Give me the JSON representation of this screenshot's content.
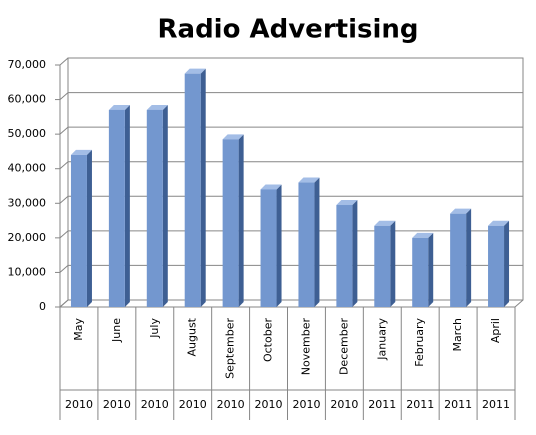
{
  "chart_data": {
    "type": "bar3d",
    "title": "Radio Advertising",
    "categories": [
      "May",
      "June",
      "July",
      "August",
      "September",
      "October",
      "November",
      "December",
      "January",
      "February",
      "March",
      "April"
    ],
    "years": [
      "2010",
      "2010",
      "2010",
      "2010",
      "2010",
      "2010",
      "2010",
      "2010",
      "2011",
      "2011",
      "2011",
      "2011"
    ],
    "values": [
      44000,
      57000,
      57000,
      67500,
      48500,
      34000,
      36000,
      29500,
      23500,
      20000,
      27000,
      23500
    ],
    "color": "#7397cf",
    "ylim": [
      0,
      70000
    ],
    "yticks": [
      0,
      {
        "value": 10000,
        "label": "10,000"
      },
      {
        "value": 20000,
        "label": "20,000"
      },
      {
        "value": 30000,
        "label": "30,000"
      },
      {
        "value": 40000,
        "label": "40,000"
      },
      {
        "value": 50000,
        "label": "50,000"
      },
      {
        "value": 60000,
        "label": "60,000"
      },
      {
        "value": 70000,
        "label": "70,000"
      }
    ],
    "grid": true
  }
}
